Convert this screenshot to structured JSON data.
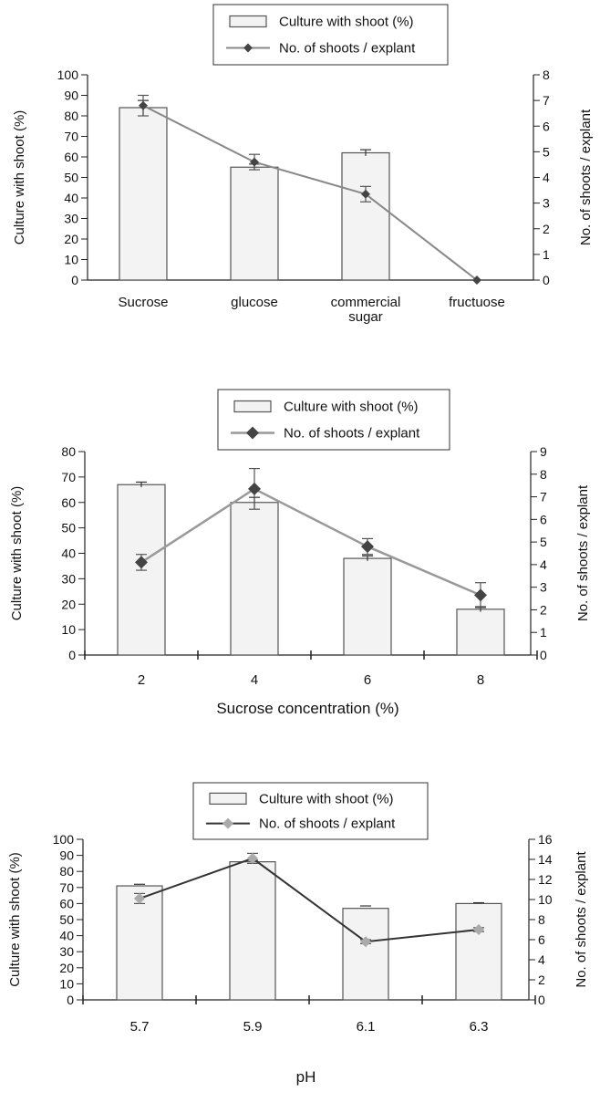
{
  "chart_data": [
    {
      "type": "bar",
      "categories": [
        "Sucrose",
        "glucose",
        "commercial sugar",
        "fructuose"
      ],
      "category_lines": [
        [
          "Sucrose"
        ],
        [
          "glucose"
        ],
        [
          "commercial",
          "sugar"
        ],
        [
          "fructuose"
        ]
      ],
      "xlabel": "",
      "ylabel": "Culture with shoot (%)",
      "y2label": "No. of shoots / explant",
      "ylim": [
        0,
        100
      ],
      "y2lim": [
        0,
        8
      ],
      "yticks": [
        0,
        10,
        20,
        30,
        40,
        50,
        60,
        70,
        80,
        90,
        100
      ],
      "y2ticks": [
        0,
        1,
        2,
        3,
        4,
        5,
        6,
        7,
        8
      ],
      "legend": [
        "Culture with shoot (%)",
        "No. of shoots / explant"
      ],
      "legend_position": "top-center",
      "series": [
        {
          "name": "Culture with shoot (%)",
          "type": "bar",
          "axis": "left",
          "values": [
            84,
            55,
            62,
            0
          ],
          "errors": [
            3.5,
            1.5,
            1.5,
            0
          ]
        },
        {
          "name": "No. of shoots / explant",
          "type": "line",
          "axis": "right",
          "values": [
            6.8,
            4.6,
            3.35,
            0
          ],
          "errors": [
            0.4,
            0.3,
            0.3,
            0
          ]
        }
      ],
      "colors": {
        "bar_fill": "#f3f3f3",
        "bar_stroke": "#555555",
        "line": "#888888",
        "marker": "#444444"
      }
    },
    {
      "type": "bar",
      "categories": [
        "2",
        "4",
        "6",
        "8"
      ],
      "category_lines": [
        [
          "2"
        ],
        [
          "4"
        ],
        [
          "6"
        ],
        [
          "8"
        ]
      ],
      "xlabel": "Sucrose concentration (%)",
      "ylabel": "Culture with shoot (%)",
      "y2label": "No. of shoots / explant",
      "ylim": [
        0,
        80
      ],
      "y2lim": [
        0,
        9
      ],
      "yticks": [
        0,
        10,
        20,
        30,
        40,
        50,
        60,
        70,
        80
      ],
      "y2ticks": [
        0,
        1,
        2,
        3,
        4,
        5,
        6,
        7,
        8,
        9
      ],
      "legend": [
        "Culture with shoot (%)",
        "No. of shoots / explant"
      ],
      "legend_position": "top-center",
      "series": [
        {
          "name": "Culture with shoot (%)",
          "type": "bar",
          "axis": "left",
          "values": [
            67,
            60,
            38,
            18
          ],
          "errors": [
            1,
            2,
            1,
            1
          ]
        },
        {
          "name": "No. of shoots / explant",
          "type": "line",
          "axis": "right",
          "values": [
            4.1,
            7.35,
            4.8,
            2.65
          ],
          "errors": [
            0.35,
            0.9,
            0.35,
            0.55
          ]
        }
      ],
      "colors": {
        "bar_fill": "#f3f3f3",
        "bar_stroke": "#555555",
        "line": "#999999",
        "marker": "#444444"
      }
    },
    {
      "type": "bar",
      "categories": [
        "5.7",
        "5.9",
        "6.1",
        "6.3"
      ],
      "category_lines": [
        [
          "5.7"
        ],
        [
          "5.9"
        ],
        [
          "6.1"
        ],
        [
          "6.3"
        ]
      ],
      "xlabel": "pH",
      "ylabel": "Culture with shoot (%)",
      "y2label": "No. of shoots / explant",
      "ylim": [
        0,
        100
      ],
      "y2lim": [
        0,
        16
      ],
      "yticks": [
        0,
        10,
        20,
        30,
        40,
        50,
        60,
        70,
        80,
        90,
        100
      ],
      "y2ticks": [
        0,
        2,
        4,
        6,
        8,
        10,
        12,
        14,
        16
      ],
      "legend": [
        "Culture with shoot (%)",
        "No. of shoots / explant"
      ],
      "legend_position": "top-center",
      "series": [
        {
          "name": "Culture with shoot (%)",
          "type": "bar",
          "axis": "left",
          "values": [
            71,
            86,
            57,
            60
          ],
          "errors": [
            1,
            1,
            1.5,
            0.5
          ]
        },
        {
          "name": "No. of shoots / explant",
          "type": "line",
          "axis": "right",
          "values": [
            10.1,
            14.1,
            5.8,
            7.0
          ],
          "errors": [
            0.5,
            0.5,
            0.2,
            0.2
          ]
        }
      ],
      "colors": {
        "bar_fill": "#f3f3f3",
        "bar_stroke": "#555555",
        "line": "#333333",
        "marker": "#aaaaaa"
      }
    }
  ]
}
